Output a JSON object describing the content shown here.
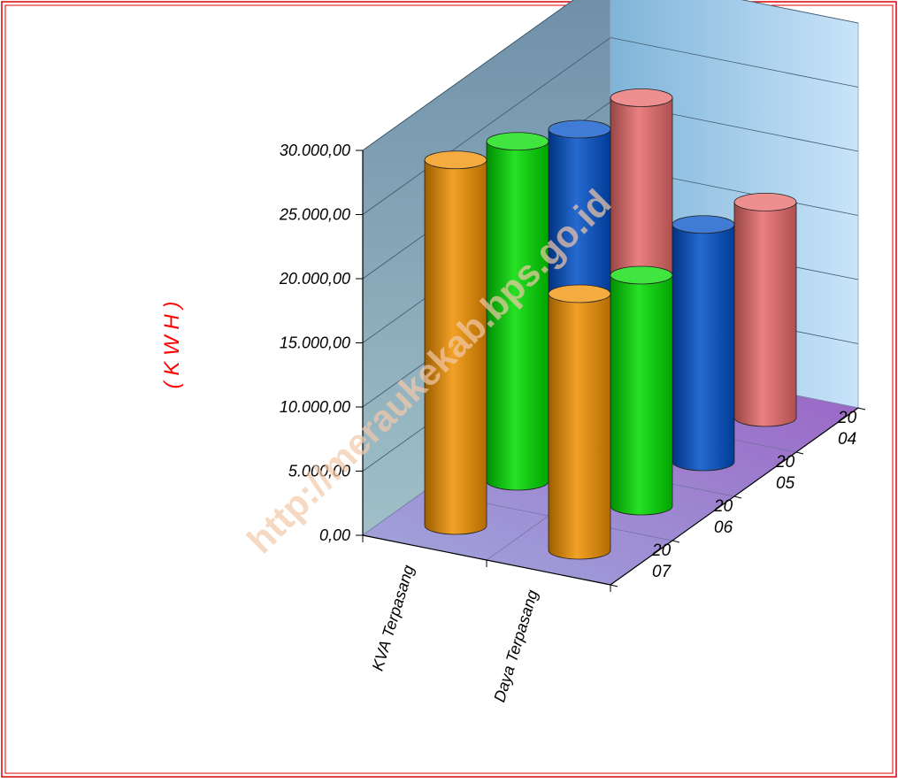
{
  "chart_data": {
    "type": "bar",
    "style": "3d-cylinder",
    "categories": [
      "KVA Terpasang",
      "Daya Terpasang"
    ],
    "series": [
      {
        "name": "2004",
        "legend_text": [
          "20",
          "04"
        ],
        "color": "#e86a6a",
        "values": [
          23000,
          16800
        ]
      },
      {
        "name": "2005",
        "legend_text": [
          "20",
          "05"
        ],
        "color": "#0050c8",
        "values": [
          24000,
          18500
        ]
      },
      {
        "name": "2006",
        "legend_text": [
          "20",
          "06"
        ],
        "color": "#00dc00",
        "values": [
          26500,
          18000
        ]
      },
      {
        "name": "2007",
        "legend_text": [
          "20",
          "07"
        ],
        "color": "#f09000",
        "values": [
          28500,
          20000
        ]
      }
    ],
    "ylabel": "( K W H )",
    "ylabel_color": "#ff0000",
    "yticks": [
      "0,00",
      "5.000,00",
      "10.000,00",
      "15.000,00",
      "20.000,00",
      "25.000,00",
      "30.000,00"
    ],
    "ylim": [
      0,
      30000
    ],
    "grid": true
  },
  "watermark": "http://meraukekab.bps.go.id",
  "frame_color": "#dd0000"
}
